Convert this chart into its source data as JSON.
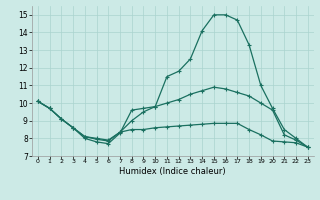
{
  "xlabel": "Humidex (Indice chaleur)",
  "xlim": [
    -0.5,
    23.5
  ],
  "ylim": [
    7,
    15.5
  ],
  "yticks": [
    7,
    8,
    9,
    10,
    11,
    12,
    13,
    14,
    15
  ],
  "xticks": [
    0,
    1,
    2,
    3,
    4,
    5,
    6,
    7,
    8,
    9,
    10,
    11,
    12,
    13,
    14,
    15,
    16,
    17,
    18,
    19,
    20,
    21,
    22,
    23
  ],
  "bg_color": "#cceae6",
  "grid_color": "#aad4ce",
  "line_color": "#1a7060",
  "line1_x": [
    0,
    1,
    2,
    3,
    4,
    5,
    6,
    7,
    8,
    9,
    10,
    11,
    12,
    13,
    14,
    15,
    16,
    17,
    18,
    19,
    20,
    21,
    22,
    23
  ],
  "line1_y": [
    10.1,
    9.7,
    9.1,
    8.6,
    8.0,
    7.8,
    7.7,
    8.3,
    9.6,
    9.7,
    9.8,
    11.5,
    11.8,
    12.5,
    14.1,
    15.0,
    15.0,
    14.7,
    13.3,
    11.0,
    9.7,
    8.5,
    8.0,
    7.5
  ],
  "line2_x": [
    0,
    1,
    2,
    3,
    4,
    5,
    6,
    7,
    8,
    9,
    10,
    11,
    12,
    13,
    14,
    15,
    16,
    17,
    18,
    19,
    20,
    21,
    22,
    23
  ],
  "line2_y": [
    10.1,
    9.7,
    9.1,
    8.6,
    8.1,
    8.0,
    7.9,
    8.35,
    9.0,
    9.5,
    9.8,
    10.0,
    10.2,
    10.5,
    10.7,
    10.9,
    10.8,
    10.6,
    10.4,
    10.0,
    9.6,
    8.2,
    7.9,
    7.5
  ],
  "line3_x": [
    0,
    1,
    2,
    3,
    4,
    5,
    6,
    7,
    8,
    9,
    10,
    11,
    12,
    13,
    14,
    15,
    16,
    17,
    18,
    19,
    20,
    21,
    22,
    23
  ],
  "line3_y": [
    10.1,
    9.7,
    9.1,
    8.6,
    8.1,
    7.95,
    7.85,
    8.35,
    8.5,
    8.5,
    8.6,
    8.65,
    8.7,
    8.75,
    8.8,
    8.85,
    8.85,
    8.85,
    8.5,
    8.2,
    7.85,
    7.8,
    7.75,
    7.5
  ]
}
